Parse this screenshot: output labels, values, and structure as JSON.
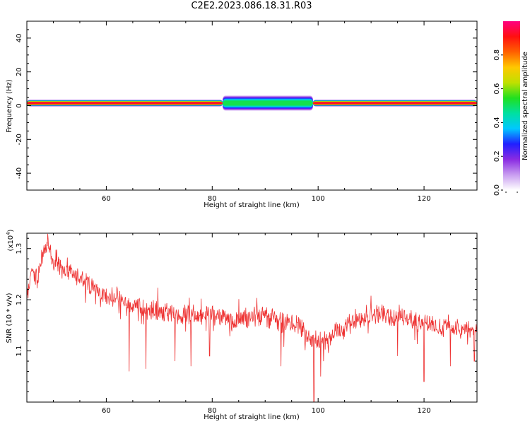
{
  "figure": {
    "title": "C2E2.2023.086.18.31.R03"
  },
  "chart_data": [
    {
      "type": "heatmap",
      "title": "C2E2.2023.086.18.31.R03",
      "xlabel": "Height of straight line (km)",
      "ylabel": "Frequency (Hz)",
      "xlim": [
        45,
        130
      ],
      "ylim": [
        -50,
        50
      ],
      "x_ticks": [
        60,
        80,
        100,
        120
      ],
      "y_ticks": [
        -40,
        -20,
        0,
        20,
        40
      ],
      "grid": false,
      "colorbar": {
        "label": "Normalized spectral amplitude",
        "range": [
          0.0,
          1.0
        ],
        "ticks": [
          "0.0",
          "0.2",
          "0.4",
          "0.6",
          "0.8"
        ],
        "colormap": [
          "#ffffff",
          "#c89cf0",
          "#8a2be2",
          "#2020ff",
          "#00c8ff",
          "#00e0a0",
          "#20e020",
          "#c0e000",
          "#ffc800",
          "#ff6000",
          "#ff1010",
          "#ff0080"
        ]
      },
      "band": {
        "center_hz": 1.5,
        "segments": [
          {
            "x_start": 45,
            "x_end": 82,
            "halfwidth_hz": 2.0,
            "peak": 0.95
          },
          {
            "x_start": 82,
            "x_end": 99,
            "halfwidth_hz": 4.5,
            "peak": 0.5
          },
          {
            "x_start": 99,
            "x_end": 130,
            "halfwidth_hz": 2.0,
            "peak": 0.95
          }
        ]
      }
    },
    {
      "type": "line",
      "xlabel": "Height of straight line (km)",
      "ylabel": "SNR (10 * v/v)",
      "y_multiplier": "(x10",
      "y_multiplier_exp": "4",
      "xlim": [
        45,
        130
      ],
      "ylim": [
        1.0,
        1.33
      ],
      "x_ticks": [
        60,
        80,
        100,
        120
      ],
      "y_ticks": [
        1.1,
        1.2,
        1.3
      ],
      "grid": false,
      "series": [
        {
          "color": "#ee3333",
          "points": [
            [
              45,
              1.2
            ],
            [
              46,
              1.26
            ],
            [
              47,
              1.24
            ],
            [
              48,
              1.29
            ],
            [
              49,
              1.31
            ],
            [
              50,
              1.27
            ],
            [
              52,
              1.26
            ],
            [
              54,
              1.25
            ],
            [
              56,
              1.23
            ],
            [
              58,
              1.22
            ],
            [
              60,
              1.21
            ],
            [
              62,
              1.2
            ],
            [
              64,
              1.19
            ],
            [
              66,
              1.185
            ],
            [
              68,
              1.18
            ],
            [
              70,
              1.18
            ],
            [
              72,
              1.175
            ],
            [
              74,
              1.17
            ],
            [
              76,
              1.175
            ],
            [
              78,
              1.165
            ],
            [
              80,
              1.17
            ],
            [
              82,
              1.165
            ],
            [
              84,
              1.16
            ],
            [
              86,
              1.165
            ],
            [
              88,
              1.165
            ],
            [
              90,
              1.17
            ],
            [
              92,
              1.16
            ],
            [
              94,
              1.155
            ],
            [
              96,
              1.15
            ],
            [
              98,
              1.13
            ],
            [
              100,
              1.12
            ],
            [
              102,
              1.13
            ],
            [
              104,
              1.14
            ],
            [
              106,
              1.16
            ],
            [
              108,
              1.165
            ],
            [
              110,
              1.17
            ],
            [
              112,
              1.17
            ],
            [
              114,
              1.165
            ],
            [
              116,
              1.17
            ],
            [
              118,
              1.16
            ],
            [
              120,
              1.155
            ],
            [
              122,
              1.15
            ],
            [
              124,
              1.145
            ],
            [
              126,
              1.145
            ],
            [
              128,
              1.14
            ],
            [
              130,
              1.14
            ]
          ],
          "dips": [
            [
              64.3,
              1.06
            ],
            [
              67.5,
              1.065
            ],
            [
              73,
              1.08
            ],
            [
              76,
              1.07
            ],
            [
              79.5,
              1.09
            ],
            [
              93,
              1.07
            ],
            [
              99.2,
              1.0
            ],
            [
              100.5,
              1.05
            ],
            [
              101,
              1.08
            ],
            [
              115,
              1.09
            ],
            [
              120,
              1.04
            ],
            [
              125,
              1.07
            ],
            [
              129.5,
              1.08
            ]
          ],
          "noise_amplitude": 0.015
        }
      ]
    }
  ]
}
